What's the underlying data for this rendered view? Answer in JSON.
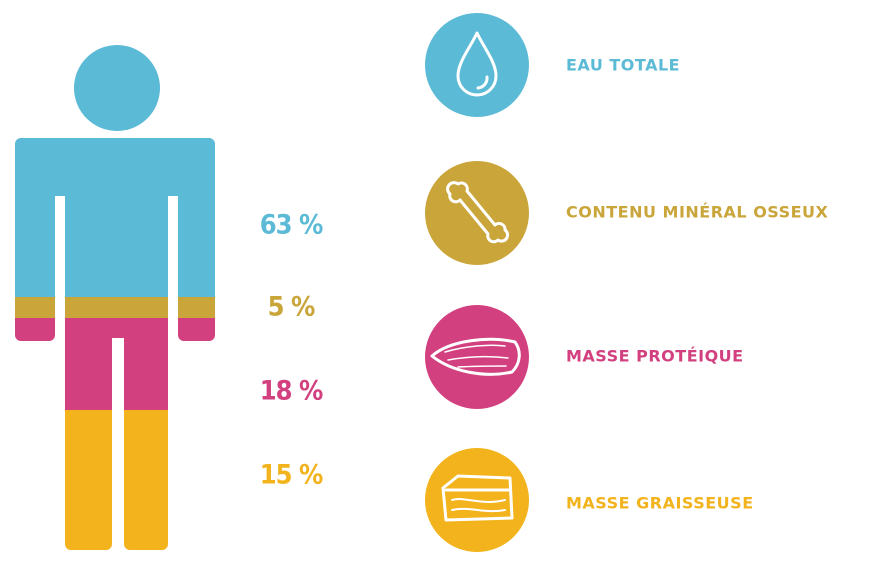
{
  "items": [
    {
      "percent": "63 %",
      "label": "EAU TOTALE"
    },
    {
      "percent": "5 %",
      "label": "CONTENU MINÉRAL OSSEUX"
    },
    {
      "percent": "18 %",
      "label": "MASSE PROTÉIQUE"
    },
    {
      "percent": "15 %",
      "label": "MASSE GRAISSEUSE"
    }
  ]
}
